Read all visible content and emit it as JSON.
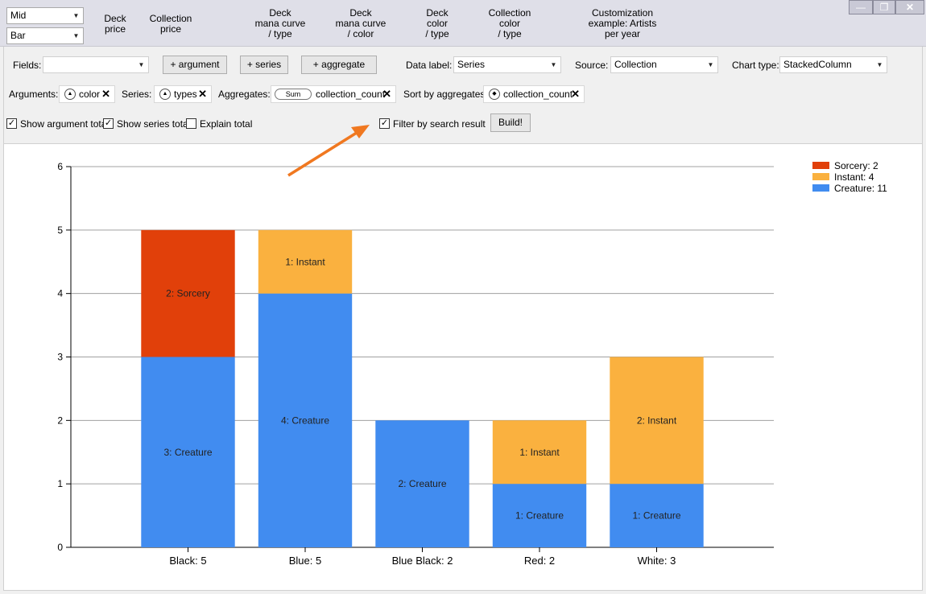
{
  "top": {
    "combo1": "Mid",
    "combo2": "Bar",
    "presets": [
      {
        "label": "Deck\nprice"
      },
      {
        "label": "Collection\nprice"
      },
      {
        "label": "Deck\nmana curve\n/ type"
      },
      {
        "label": "Deck\nmana curve\n/ color"
      },
      {
        "label": "Deck\ncolor\n/ type"
      },
      {
        "label": "Collection\ncolor\n/ type"
      },
      {
        "label": "Customization\nexample: Artists\nper year"
      }
    ],
    "window": {
      "minimize": "—",
      "maximize": "❐",
      "close": "✕"
    }
  },
  "panel": {
    "fields_label": "Fields:",
    "fields_value": "",
    "add_argument": "+ argument",
    "add_series": "+ series",
    "add_aggregate": "+ aggregate",
    "data_label_label": "Data label:",
    "data_label_value": "Series",
    "source_label": "Source:",
    "source_value": "Collection",
    "chart_type_label": "Chart type:",
    "chart_type_value": "StackedColumn",
    "arguments_label": "Arguments:",
    "argument_chip": "color",
    "series_label": "Series:",
    "series_chip": "types",
    "aggregates_label": "Aggregates:",
    "aggregate_func": "Sum",
    "aggregate_chip": "collection_count",
    "sort_label": "Sort by aggregates:",
    "sort_chip": "collection_count",
    "chip_close": "✕",
    "show_argument_total": "Show argument total",
    "show_series_total": "Show series total",
    "explain_total": "Explain total",
    "filter_by_search": "Filter by search result",
    "build": "Build!",
    "checks": {
      "show_argument_total": true,
      "show_series_total": true,
      "explain_total": false,
      "filter_by_search": true
    }
  },
  "chart_data": {
    "type": "bar",
    "stacked": true,
    "categories": [
      "Black: 5",
      "Blue: 5",
      "Blue Black: 2",
      "Red: 2",
      "White: 3"
    ],
    "series": [
      {
        "name": "Creature",
        "legend": "Creature: 11",
        "color": "#418cf0",
        "values": [
          3,
          4,
          2,
          1,
          1
        ],
        "labels": [
          "3: Creature",
          "4: Creature",
          "2: Creature",
          "1: Creature",
          "1: Creature"
        ]
      },
      {
        "name": "Instant",
        "legend": "Instant: 4",
        "color": "#fab13f",
        "values": [
          0,
          1,
          0,
          1,
          2
        ],
        "labels": [
          "",
          "1: Instant",
          "",
          "1: Instant",
          "2: Instant"
        ]
      },
      {
        "name": "Sorcery",
        "legend": "Sorcery: 2",
        "color": "#e1400a",
        "values": [
          2,
          0,
          0,
          0,
          0
        ],
        "labels": [
          "2: Sorcery",
          "",
          "",
          "",
          ""
        ]
      }
    ],
    "legend_order": [
      "Sorcery",
      "Instant",
      "Creature"
    ],
    "ylim": [
      0,
      6
    ],
    "yticks": [
      "0",
      "1",
      "2",
      "3",
      "4",
      "5",
      "6"
    ],
    "grid": true,
    "legend_position": "top-right",
    "annotation_color": "#f07820"
  }
}
